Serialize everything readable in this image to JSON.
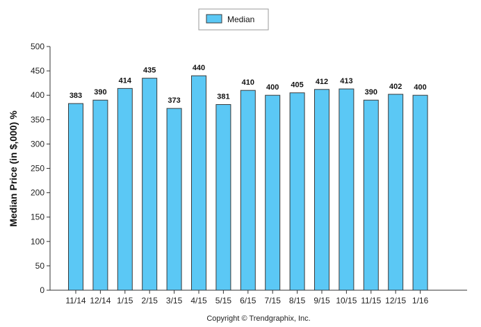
{
  "chart_data": {
    "type": "bar",
    "categories": [
      "11/14",
      "12/14",
      "1/15",
      "2/15",
      "3/15",
      "4/15",
      "5/15",
      "6/15",
      "7/15",
      "8/15",
      "9/15",
      "10/15",
      "11/15",
      "12/15",
      "1/16"
    ],
    "series": [
      {
        "name": "Median",
        "values": [
          383,
          390,
          414,
          435,
          373,
          440,
          381,
          410,
          400,
          405,
          412,
          413,
          390,
          402,
          400
        ]
      }
    ],
    "ylabel": "Median Price (in $,000) %",
    "xlabel": "",
    "ylim": [
      0,
      500
    ],
    "yticks": [
      0,
      50,
      100,
      150,
      200,
      250,
      300,
      350,
      400,
      450,
      500
    ],
    "data_labels": true,
    "legend_position": "top-center",
    "grid": false
  },
  "colors": {
    "bar_fill": "#5BC8F5",
    "bar_stroke": "#3a3a3a"
  },
  "footer": {
    "copyright": "Copyright © Trendgraphix, Inc."
  }
}
